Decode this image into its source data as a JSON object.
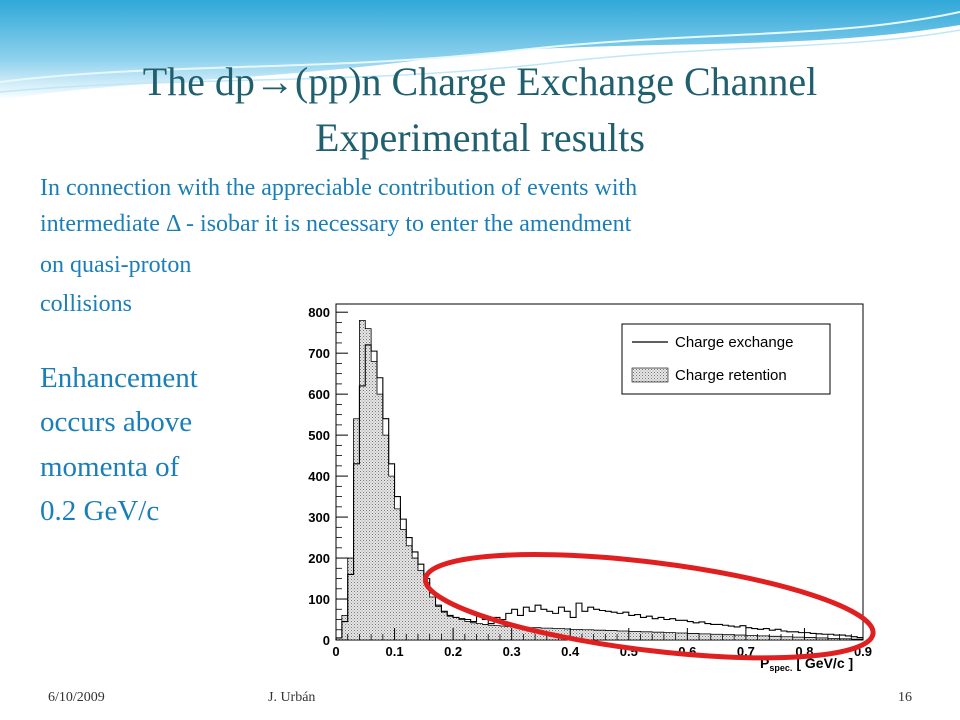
{
  "slide": {
    "title_line1": "The dp→(pp)n Charge Exchange Channel",
    "title_line2": "Experimental results",
    "text_lines": [
      "In connection with the appreciable contribution of events with",
      "intermediate Δ - isobar it is necessary  to enter the amendment",
      "on quasi-proton",
      "collisions"
    ],
    "side_lines": [
      "Enhancement",
      "occurs above",
      "momenta of",
      "0.2 GeV/c"
    ],
    "footer": {
      "date": "6/10/2009",
      "author": "J. Urbán",
      "page": "16"
    },
    "colors": {
      "title": "#1f5f6e",
      "text": "#1a7fb8",
      "highlight": "#e02020"
    }
  },
  "chart_data": {
    "type": "histogram",
    "title": "",
    "xlabel_main": "P",
    "xlabel_sub": "spec.",
    "xlabel_unit": "[ GeV/c ]",
    "ylabel": "",
    "xlim": [
      0,
      0.9
    ],
    "ylim": [
      0,
      820
    ],
    "bin_width": 0.01,
    "x_ticks": [
      "0",
      "0.1",
      "0.2",
      "0.3",
      "0.4",
      "0.5",
      "0.6",
      "0.7",
      "0.8",
      "0.9"
    ],
    "y_ticks": [
      "0",
      "100",
      "200",
      "300",
      "400",
      "500",
      "600",
      "700",
      "800"
    ],
    "legend": {
      "placement": "top-right",
      "entries": [
        "Charge exchange",
        "Charge retention"
      ]
    },
    "series": [
      {
        "name": "Charge exchange",
        "style": "outline",
        "values": [
          5,
          45,
          160,
          430,
          620,
          720,
          705,
          640,
          540,
          430,
          350,
          295,
          250,
          215,
          185,
          150,
          115,
          85,
          70,
          60,
          55,
          52,
          50,
          45,
          60,
          50,
          40,
          55,
          50,
          65,
          75,
          60,
          80,
          70,
          85,
          75,
          70,
          65,
          80,
          70,
          55,
          90,
          70,
          80,
          75,
          72,
          70,
          68,
          65,
          68,
          60,
          62,
          55,
          58,
          52,
          55,
          50,
          52,
          48,
          48,
          45,
          42,
          44,
          40,
          38,
          38,
          36,
          34,
          32,
          35,
          30,
          28,
          26,
          28,
          24,
          26,
          22,
          20,
          20,
          18,
          18,
          16,
          15,
          14,
          14,
          12,
          12,
          10,
          8,
          6
        ]
      },
      {
        "name": "Charge retention",
        "style": "hatched",
        "values": [
          5,
          60,
          200,
          540,
          780,
          760,
          680,
          600,
          500,
          400,
          320,
          270,
          230,
          200,
          170,
          140,
          105,
          82,
          68,
          58,
          55,
          50,
          45,
          42,
          40,
          38,
          36,
          35,
          34,
          33,
          32,
          32,
          31,
          30,
          30,
          29,
          29,
          28,
          28,
          27,
          26,
          26,
          25,
          25,
          24,
          24,
          23,
          23,
          22,
          22,
          21,
          21,
          20,
          20,
          19,
          19,
          18,
          18,
          17,
          17,
          16,
          16,
          15,
          15,
          14,
          14,
          13,
          13,
          12,
          12,
          11,
          11,
          10,
          10,
          9,
          9,
          8,
          8,
          7,
          7,
          6,
          6,
          5,
          5,
          4,
          4,
          3,
          3,
          2,
          2
        ]
      }
    ],
    "annotation": {
      "shape": "ellipse",
      "color": "#e02020",
      "x_range": [
        0.15,
        0.92
      ],
      "y_range": [
        -25,
        190
      ]
    }
  }
}
